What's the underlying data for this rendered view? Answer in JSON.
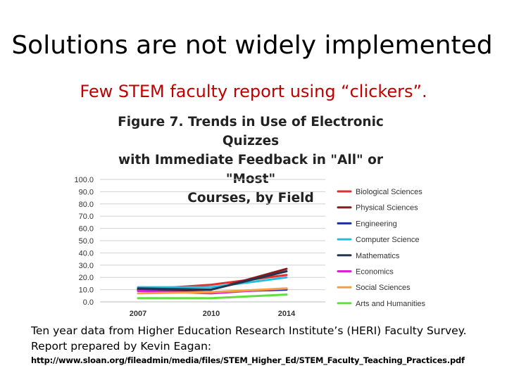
{
  "slide": {
    "title": "Solutions are not widely implemented",
    "subtitle": "Few STEM faculty report using “clickers”.",
    "footer_line1": "Ten year data from Higher Education Research Institute’s (HERI) Faculty Survey.",
    "footer_line2": "Report prepared by Kevin Eagan:",
    "footer_url": "http://www.sloan.org/fileadmin/media/files/STEM_Higher_Ed/STEM_Faculty_Teaching_Practices.pdf"
  },
  "chart_data": {
    "type": "line",
    "title_lines": [
      "Figure 7. Trends in Use of Electronic Quizzes",
      "with Immediate Feedback in \"All\" or \"Most\"",
      "Courses, by Field"
    ],
    "x": [
      "2007",
      "2010",
      "2014"
    ],
    "ylim": [
      0,
      100
    ],
    "yticks": [
      "0.0",
      "10.0",
      "20.0",
      "30.0",
      "40.0",
      "50.0",
      "60.0",
      "70.0",
      "80.0",
      "90.0",
      "100.0"
    ],
    "grid": true,
    "legend_position": "right",
    "series": [
      {
        "name": "Biological Sciences",
        "color": "#e03030",
        "values": [
          10,
          14,
          22
        ]
      },
      {
        "name": "Physical Sciences",
        "color": "#8b1a1a",
        "values": [
          10,
          10,
          27
        ]
      },
      {
        "name": "Engineering",
        "color": "#1a2fa0",
        "values": [
          9,
          8,
          10
        ]
      },
      {
        "name": "Computer Science",
        "color": "#22c0e0",
        "values": [
          12,
          12,
          20
        ]
      },
      {
        "name": "Mathematics",
        "color": "#243550",
        "values": [
          11,
          10,
          25
        ]
      },
      {
        "name": "Economics",
        "color": "#e020d0",
        "values": [
          9,
          7,
          11
        ]
      },
      {
        "name": "Social Sciences",
        "color": "#f5a040",
        "values": [
          7,
          8,
          11
        ]
      },
      {
        "name": "Arts and Humanities",
        "color": "#60e040",
        "values": [
          3,
          3,
          6
        ]
      }
    ]
  }
}
